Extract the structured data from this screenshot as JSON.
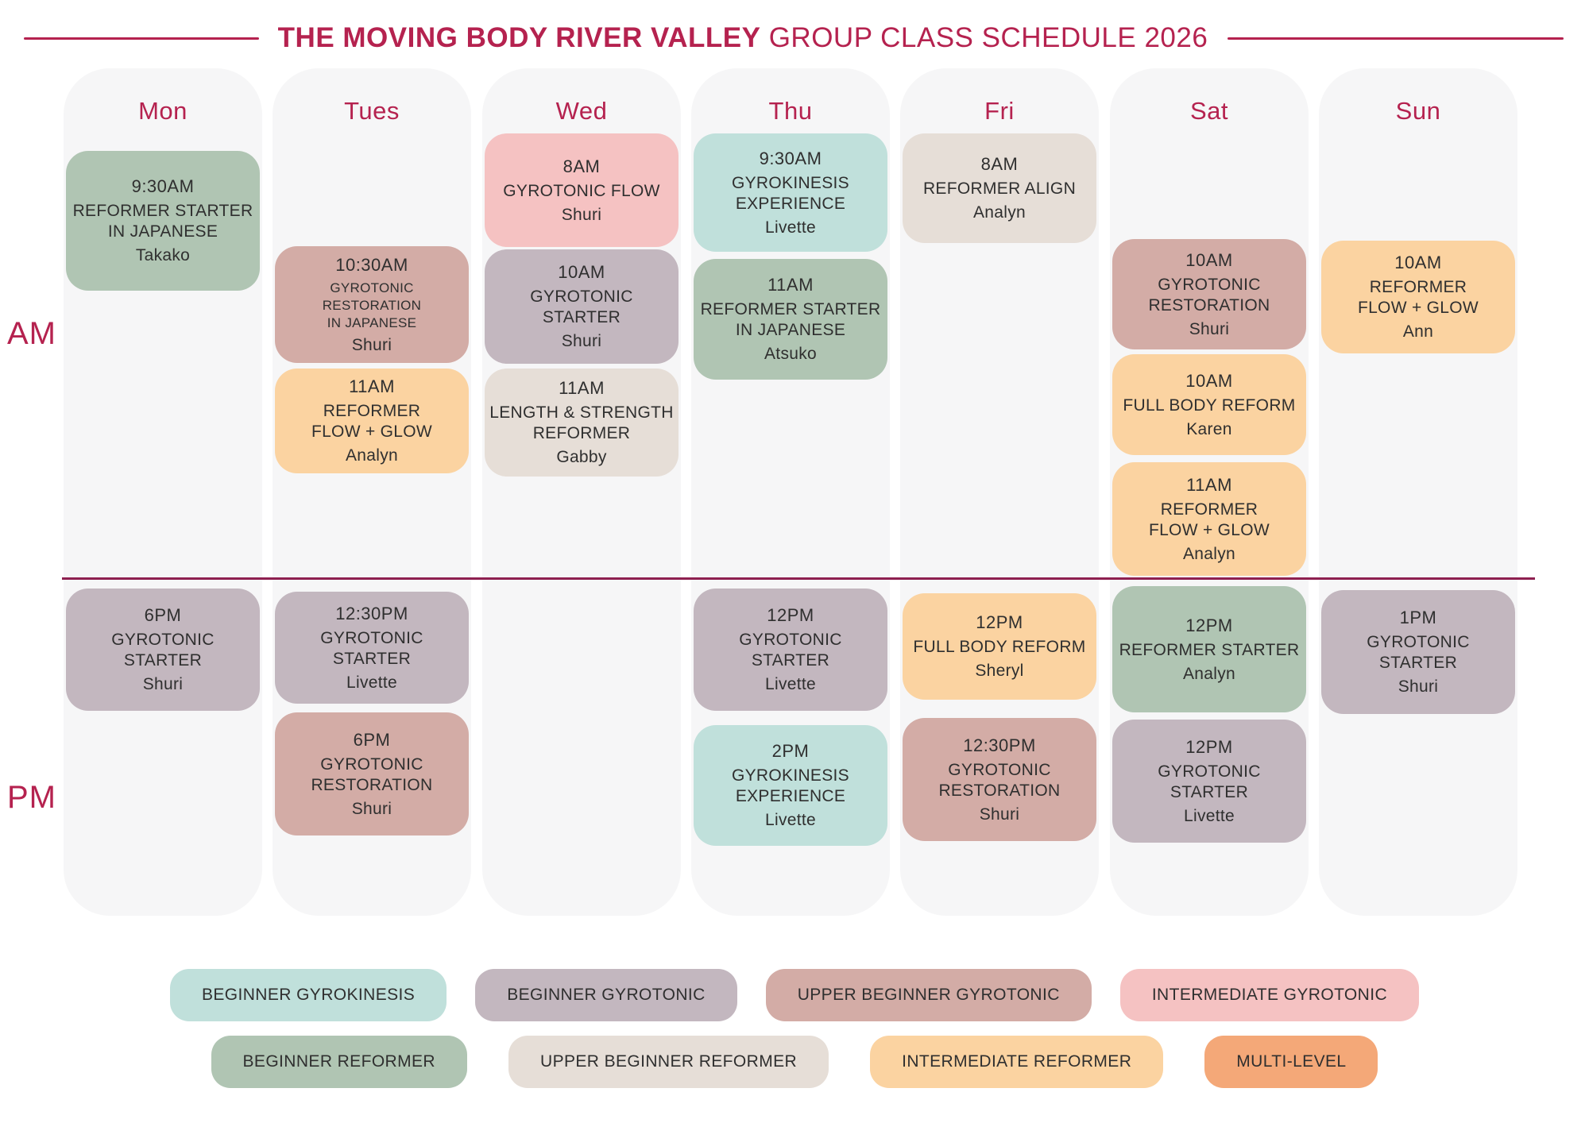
{
  "title": {
    "brand": "THE MOVING BODY RIVER VALLEY",
    "rest": "GROUP CLASS SCHEDULE 2026"
  },
  "colors": {
    "accent": "#b5224f",
    "divider": "#8e2050",
    "column_bg": "#f6f6f7",
    "text": "#2f2f2f"
  },
  "period_labels": {
    "am": "AM",
    "pm": "PM"
  },
  "levels": {
    "beginner-gyrokinesis": {
      "label": "BEGINNER GYROKINESIS",
      "color": "#c0e0db"
    },
    "beginner-gyrotonic": {
      "label": "BEGINNER GYROTONIC",
      "color": "#c3b7bf"
    },
    "upper-beginner-gyrotonic": {
      "label": "UPPER BEGINNER GYROTONIC",
      "color": "#d3aca6"
    },
    "intermediate-gyrotonic": {
      "label": "INTERMEDIATE GYROTONIC",
      "color": "#f5c2c2"
    },
    "beginner-reformer": {
      "label": "BEGINNER REFORMER",
      "color": "#b0c5b3"
    },
    "upper-beginner-reformer": {
      "label": "UPPER BEGINNER REFORMER",
      "color": "#e6ded7"
    },
    "intermediate-reformer": {
      "label": "INTERMEDIATE REFORMER",
      "color": "#fbd3a1"
    },
    "multi-level": {
      "label": "MULTI-LEVEL",
      "color": "#f4a878"
    }
  },
  "legend_rows": [
    [
      "beginner-gyrokinesis",
      "beginner-gyrotonic",
      "upper-beginner-gyrotonic",
      "intermediate-gyrotonic"
    ],
    [
      "beginner-reformer",
      "upper-beginner-reformer",
      "intermediate-reformer",
      "multi-level"
    ]
  ],
  "days": [
    {
      "label": "Mon",
      "am": [
        {
          "time": "9:30AM",
          "title_lines": [
            "REFORMER STARTER",
            "IN JAPANESE"
          ],
          "instructor": "Takako",
          "level": "beginner-reformer"
        }
      ],
      "pm": [
        {
          "time": "6PM",
          "title_lines": [
            "GYROTONIC STARTER"
          ],
          "instructor": "Shuri",
          "level": "beginner-gyrotonic"
        }
      ]
    },
    {
      "label": "Tues",
      "am": [
        {
          "time": "10:30AM",
          "title_lines": [
            "GYROTONIC RESTORATION",
            "IN JAPANESE"
          ],
          "instructor": "Shuri",
          "level": "upper-beginner-gyrotonic"
        },
        {
          "time": "11AM",
          "title_lines": [
            "REFORMER",
            "FLOW + GLOW"
          ],
          "instructor": "Analyn",
          "level": "intermediate-reformer"
        }
      ],
      "pm": [
        {
          "time": "12:30PM",
          "title_lines": [
            "GYROTONIC STARTER"
          ],
          "instructor": "Livette",
          "level": "beginner-gyrotonic"
        },
        {
          "time": "6PM",
          "title_lines": [
            "GYROTONIC",
            "RESTORATION"
          ],
          "instructor": "Shuri",
          "level": "upper-beginner-gyrotonic"
        }
      ]
    },
    {
      "label": "Wed",
      "am": [
        {
          "time": "8AM",
          "title_lines": [
            "GYROTONIC FLOW"
          ],
          "instructor": "Shuri",
          "level": "intermediate-gyrotonic"
        },
        {
          "time": "10AM",
          "title_lines": [
            "GYROTONIC STARTER"
          ],
          "instructor": "Shuri",
          "level": "beginner-gyrotonic"
        },
        {
          "time": "11AM",
          "title_lines": [
            "LENGTH & STRENGTH",
            "REFORMER"
          ],
          "instructor": "Gabby",
          "level": "upper-beginner-reformer"
        }
      ],
      "pm": []
    },
    {
      "label": "Thu",
      "am": [
        {
          "time": "9:30AM",
          "title_lines": [
            "GYROKINESIS",
            "EXPERIENCE"
          ],
          "instructor": "Livette",
          "level": "beginner-gyrokinesis"
        },
        {
          "time": "11AM",
          "title_lines": [
            "REFORMER STARTER",
            "IN JAPANESE"
          ],
          "instructor": "Atsuko",
          "level": "beginner-reformer"
        }
      ],
      "pm": [
        {
          "time": "12PM",
          "title_lines": [
            "GYROTONIC STARTER"
          ],
          "instructor": "Livette",
          "level": "beginner-gyrotonic"
        },
        {
          "time": "2PM",
          "title_lines": [
            "GYROKINESIS",
            "EXPERIENCE"
          ],
          "instructor": "Livette",
          "level": "beginner-gyrokinesis"
        }
      ]
    },
    {
      "label": "Fri",
      "am": [
        {
          "time": "8AM",
          "title_lines": [
            "REFORMER ALIGN"
          ],
          "instructor": "Analyn",
          "level": "upper-beginner-reformer"
        }
      ],
      "pm": [
        {
          "time": "12PM",
          "title_lines": [
            "FULL BODY REFORM"
          ],
          "instructor": "Sheryl",
          "level": "intermediate-reformer"
        },
        {
          "time": "12:30PM",
          "title_lines": [
            "GYROTONIC",
            "RESTORATION"
          ],
          "instructor": "Shuri",
          "level": "upper-beginner-gyrotonic"
        }
      ]
    },
    {
      "label": "Sat",
      "am": [
        {
          "time": "10AM",
          "title_lines": [
            "GYROTONIC",
            "RESTORATION"
          ],
          "instructor": "Shuri",
          "level": "upper-beginner-gyrotonic"
        },
        {
          "time": "10AM",
          "title_lines": [
            "FULL BODY REFORM"
          ],
          "instructor": "Karen",
          "level": "intermediate-reformer"
        },
        {
          "time": "11AM",
          "title_lines": [
            "REFORMER",
            "FLOW + GLOW"
          ],
          "instructor": "Analyn",
          "level": "intermediate-reformer"
        }
      ],
      "pm": [
        {
          "time": "12PM",
          "title_lines": [
            "REFORMER STARTER"
          ],
          "instructor": "Analyn",
          "level": "beginner-reformer"
        },
        {
          "time": "12PM",
          "title_lines": [
            "GYROTONIC STARTER"
          ],
          "instructor": "Livette",
          "level": "beginner-gyrotonic"
        }
      ]
    },
    {
      "label": "Sun",
      "am": [
        {
          "time": "10AM",
          "title_lines": [
            "REFORMER",
            "FLOW + GLOW"
          ],
          "instructor": "Ann",
          "level": "intermediate-reformer"
        }
      ],
      "pm": [
        {
          "time": "1PM",
          "title_lines": [
            "GYROTONIC STARTER"
          ],
          "instructor": "Shuri",
          "level": "beginner-gyrotonic"
        }
      ]
    }
  ]
}
